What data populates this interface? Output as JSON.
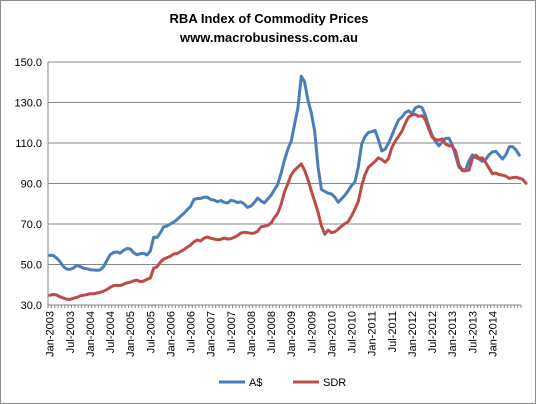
{
  "chart_data": {
    "type": "line",
    "title": "RBA Index of Commodity Prices",
    "subtitle": "www.macrobusiness.com.au",
    "xlabel": "",
    "ylabel": "",
    "ylim": [
      30,
      150
    ],
    "yticks": [
      "30.0",
      "50.0",
      "70.0",
      "90.0",
      "110.0",
      "130.0",
      "150.0"
    ],
    "grid": true,
    "legend": "bottom",
    "start_month": "Jan-2003",
    "xtick_labels": [
      "Jan-2003",
      "Jul-2003",
      "Jan-2004",
      "Jul-2004",
      "Jan-2005",
      "Jul-2005",
      "Jan-2006",
      "Jul-2006",
      "Jan-2007",
      "Jul-2007",
      "Jan-2008",
      "Jul-2008",
      "Jan-2009",
      "Jul-2009",
      "Jan-2010",
      "Jul-2010",
      "Jan-2011",
      "Jul-2011",
      "Jan-2012",
      "Jul-2012",
      "Jan-2013",
      "Jul-2013",
      "Jan-2014"
    ],
    "series": [
      {
        "name": "A$",
        "color": "#4a7ebb",
        "values": [
          54.5,
          54.5,
          53.3,
          51.6,
          49.2,
          47.8,
          47.6,
          48.2,
          49.4,
          49.0,
          48.2,
          47.9,
          47.5,
          47.3,
          47.2,
          47.3,
          48.8,
          51.8,
          54.8,
          55.9,
          56.2,
          55.6,
          56.9,
          57.9,
          57.7,
          55.9,
          54.8,
          55.4,
          55.6,
          54.7,
          56.6,
          63.5,
          63.4,
          65.7,
          68.6,
          69.0,
          70.0,
          71.0,
          72.2,
          73.8,
          75.3,
          77.0,
          78.7,
          82.1,
          82.6,
          82.6,
          83.3,
          83.2,
          82.1,
          81.8,
          81.0,
          81.6,
          80.7,
          80.3,
          81.7,
          81.3,
          80.6,
          80.9,
          79.9,
          78.2,
          78.9,
          80.6,
          82.8,
          81.4,
          80.4,
          82.3,
          84.2,
          86.9,
          89.6,
          95.1,
          101.6,
          107.1,
          110.9,
          119.3,
          127.3,
          143.0,
          140.1,
          131.1,
          124.8,
          115.8,
          98.4,
          87.1,
          86.1,
          85.2,
          84.8,
          83.3,
          80.7,
          82.4,
          84.2,
          86.5,
          89.0,
          90.7,
          98.2,
          109.5,
          113.2,
          115.2,
          115.6,
          116.2,
          111.6,
          106.1,
          106.9,
          109.9,
          113.6,
          117.8,
          121.4,
          122.8,
          125.0,
          125.9,
          124.4,
          127.3,
          128.1,
          127.6,
          123.6,
          118.3,
          113.8,
          110.8,
          108.6,
          110.4,
          112.2,
          112.4,
          109.1,
          103.8,
          98.0,
          96.9,
          96.7,
          101.2,
          104.1,
          102.8,
          102.1,
          100.9,
          102.0,
          104.2,
          105.6,
          105.9,
          104.0,
          102.1,
          104.2,
          108.1,
          108.2,
          106.6,
          104.0
        ]
      },
      {
        "name": "SDR",
        "color": "#be4b48",
        "values": [
          34.8,
          35.2,
          35.0,
          34.1,
          33.5,
          32.9,
          32.7,
          33.3,
          33.7,
          34.4,
          34.8,
          35.1,
          35.6,
          35.6,
          35.9,
          36.2,
          36.8,
          37.6,
          38.7,
          39.6,
          39.8,
          39.6,
          40.2,
          40.9,
          41.2,
          41.9,
          42.3,
          41.5,
          41.8,
          42.7,
          43.3,
          48.2,
          48.8,
          51.2,
          52.7,
          53.4,
          54.1,
          55.2,
          55.5,
          56.4,
          57.3,
          58.5,
          59.6,
          61.2,
          62.1,
          61.6,
          63.0,
          63.6,
          63.0,
          62.6,
          62.2,
          62.4,
          63.1,
          62.6,
          62.7,
          63.4,
          64.3,
          65.5,
          65.9,
          65.7,
          65.4,
          65.5,
          66.4,
          68.6,
          68.9,
          69.3,
          70.5,
          73.1,
          75.4,
          79.7,
          85.9,
          90.0,
          94.3,
          96.6,
          98.1,
          99.7,
          96.5,
          91.9,
          86.4,
          81.2,
          75.9,
          69.1,
          64.9,
          67.0,
          65.7,
          66.1,
          67.5,
          68.9,
          70.2,
          71.2,
          74.0,
          77.3,
          81.1,
          88.9,
          94.4,
          98.0,
          99.5,
          100.9,
          102.7,
          101.8,
          100.5,
          102.3,
          107.7,
          110.8,
          113.3,
          115.8,
          119.8,
          122.8,
          123.9,
          124.1,
          123.2,
          123.5,
          121.5,
          117.0,
          112.9,
          111.8,
          111.4,
          112.0,
          109.5,
          108.7,
          108.4,
          106.0,
          99.4,
          96.3,
          96.2,
          96.6,
          102.3,
          104.0,
          102.6,
          102.6,
          100.2,
          97.5,
          94.8,
          95.2,
          94.4,
          94.1,
          93.6,
          92.5,
          92.9,
          93.1,
          92.6,
          92.0,
          90.1
        ]
      }
    ]
  }
}
